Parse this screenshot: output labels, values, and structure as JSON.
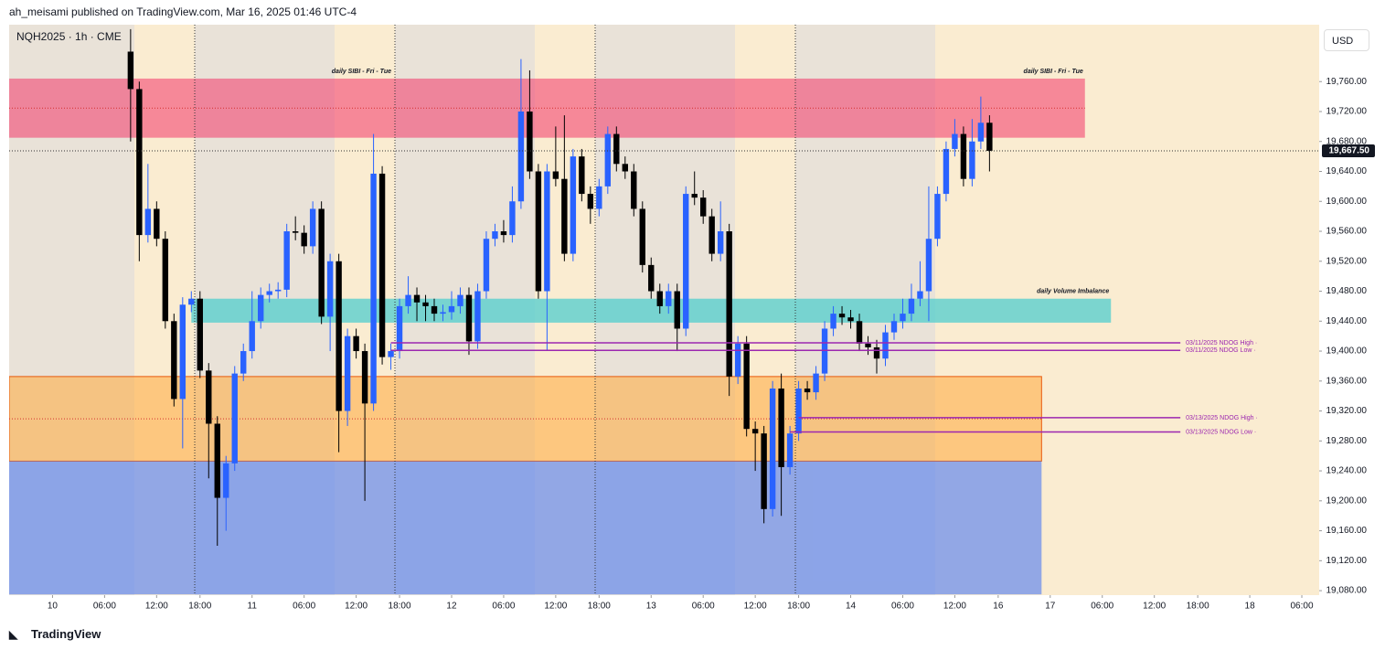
{
  "header": {
    "publisher": "ah_meisami published on TradingView.com, Mar 16, 2025 01:46 UTC-4"
  },
  "chart_data": {
    "type": "candlestick",
    "title": "NQH2025 · 1h · CME",
    "currency": "USD",
    "up_color": "#2962ff",
    "down_color": "#000000",
    "open": [
      19800,
      19750,
      19555,
      19590,
      19550,
      19440,
      19336,
      19462,
      19470,
      19374,
      19303,
      19204,
      19250,
      19370,
      19400,
      19440,
      19475,
      19480,
      19482,
      19560,
      19558,
      19540,
      19590,
      19446,
      19520,
      19320,
      19420,
      19400,
      19330,
      19637,
      19392,
      19400,
      19460,
      19475,
      19465,
      19460,
      19450,
      19452,
      19460,
      19475,
      19413,
      19480,
      19550,
      19560,
      19555,
      19600,
      19720,
      19640,
      19480,
      19640,
      19630,
      19530,
      19660,
      19610,
      19590,
      19620,
      19690,
      19650,
      19640,
      19590,
      19515,
      19480,
      19460,
      19480,
      19430,
      19610,
      19605,
      19580,
      19530,
      19560,
      19366,
      19410,
      19296,
      19290,
      19189,
      19350,
      19245,
      19290,
      19350,
      19345,
      19370,
      19430,
      19450,
      19445,
      19440,
      19410,
      19405,
      19390,
      19425,
      19440,
      19450,
      19470,
      19480,
      19550,
      19610,
      19670,
      19690,
      19630,
      19680,
      19705
    ],
    "high": [
      19830,
      19760,
      19650,
      19600,
      19560,
      19450,
      19472,
      19480,
      19480,
      19384,
      19313,
      19260,
      19380,
      19410,
      19480,
      19485,
      19490,
      19492,
      19570,
      19580,
      19568,
      19600,
      19600,
      19530,
      19530,
      19430,
      19430,
      19410,
      19690,
      19647,
      19410,
      19470,
      19500,
      19485,
      19475,
      19470,
      19462,
      19480,
      19485,
      19485,
      19490,
      19560,
      19570,
      19575,
      19620,
      19790,
      19775,
      19650,
      19650,
      19700,
      19715,
      19670,
      19670,
      19620,
      19630,
      19700,
      19700,
      19660,
      19650,
      19600,
      19525,
      19490,
      19490,
      19490,
      19620,
      19640,
      19615,
      19590,
      19600,
      19570,
      19420,
      19420,
      19306,
      19300,
      19360,
      19370,
      19300,
      19360,
      19360,
      19380,
      19440,
      19460,
      19460,
      19455,
      19450,
      19420,
      19415,
      19435,
      19450,
      19470,
      19490,
      19520,
      19620,
      19620,
      19680,
      19710,
      19700,
      19710,
      19740,
      19715
    ],
    "low": [
      19680,
      19520,
      19545,
      19540,
      19430,
      19326,
      19270,
      19452,
      19364,
      19230,
      19140,
      19160,
      19240,
      19360,
      19390,
      19430,
      19465,
      19470,
      19472,
      19548,
      19530,
      19530,
      19436,
      19400,
      19265,
      19300,
      19390,
      19200,
      19320,
      19382,
      19375,
      19390,
      19450,
      19440,
      19440,
      19440,
      19440,
      19442,
      19450,
      19395,
      19403,
      19470,
      19540,
      19545,
      19545,
      19590,
      19630,
      19470,
      19400,
      19620,
      19520,
      19520,
      19600,
      19570,
      19580,
      19610,
      19640,
      19630,
      19580,
      19505,
      19470,
      19450,
      19450,
      19400,
      19420,
      19595,
      19570,
      19520,
      19520,
      19340,
      19356,
      19286,
      19240,
      19170,
      19179,
      19180,
      19235,
      19280,
      19335,
      19335,
      19360,
      19420,
      19435,
      19430,
      19400,
      19395,
      19370,
      19380,
      19415,
      19430,
      19440,
      19460,
      19440,
      19540,
      19600,
      19660,
      19620,
      19620,
      19670,
      19640
    ],
    "close": [
      19750,
      19555,
      19590,
      19550,
      19440,
      19336,
      19462,
      19470,
      19374,
      19303,
      19204,
      19250,
      19370,
      19400,
      19440,
      19475,
      19480,
      19482,
      19560,
      19558,
      19540,
      19590,
      19446,
      19520,
      19320,
      19420,
      19400,
      19330,
      19637,
      19392,
      19400,
      19460,
      19475,
      19465,
      19460,
      19450,
      19452,
      19460,
      19475,
      19413,
      19480,
      19550,
      19560,
      19555,
      19600,
      19720,
      19640,
      19480,
      19640,
      19630,
      19530,
      19660,
      19610,
      19590,
      19620,
      19690,
      19650,
      19640,
      19590,
      19515,
      19480,
      19460,
      19480,
      19430,
      19610,
      19605,
      19580,
      19530,
      19560,
      19366,
      19410,
      19296,
      19290,
      19189,
      19350,
      19245,
      19290,
      19350,
      19345,
      19370,
      19430,
      19450,
      19445,
      19440,
      19410,
      19405,
      19390,
      19425,
      19440,
      19450,
      19470,
      19480,
      19550,
      19610,
      19670,
      19690,
      19630,
      19680,
      19705,
      19667.5
    ],
    "last_price": {
      "value": 19667.5,
      "label": "19,667.50"
    },
    "ylim": [
      19074,
      19836
    ],
    "yticks": [
      {
        "value": 19080,
        "label": "19,080.00"
      },
      {
        "value": 19120,
        "label": "19,120.00"
      },
      {
        "value": 19160,
        "label": "19,160.00"
      },
      {
        "value": 19200,
        "label": "19,200.00"
      },
      {
        "value": 19240,
        "label": "19,240.00"
      },
      {
        "value": 19280,
        "label": "19,280.00"
      },
      {
        "value": 19320,
        "label": "19,320.00"
      },
      {
        "value": 19360,
        "label": "19,360.00"
      },
      {
        "value": 19400,
        "label": "19,400.00"
      },
      {
        "value": 19440,
        "label": "19,440.00"
      },
      {
        "value": 19480,
        "label": "19,480.00"
      },
      {
        "value": 19520,
        "label": "19,520.00"
      },
      {
        "value": 19560,
        "label": "19,560.00"
      },
      {
        "value": 19600,
        "label": "19,600.00"
      },
      {
        "value": 19640,
        "label": "19,640.00"
      },
      {
        "value": 19680,
        "label": "19,680.00"
      },
      {
        "value": 19720,
        "label": "19,720.00"
      },
      {
        "value": 19760,
        "label": "19,760.00"
      }
    ],
    "xlim": [
      -14,
      137
    ],
    "xticks": [
      {
        "value": -9,
        "label": "10"
      },
      {
        "value": -3,
        "label": "06:00"
      },
      {
        "value": 3,
        "label": "12:00"
      },
      {
        "value": 8,
        "label": "18:00"
      },
      {
        "value": 14,
        "label": "11"
      },
      {
        "value": 20,
        "label": "06:00"
      },
      {
        "value": 26,
        "label": "12:00"
      },
      {
        "value": 31,
        "label": "18:00"
      },
      {
        "value": 37,
        "label": "12"
      },
      {
        "value": 43,
        "label": "06:00"
      },
      {
        "value": 49,
        "label": "12:00"
      },
      {
        "value": 54,
        "label": "18:00"
      },
      {
        "value": 60,
        "label": "13"
      },
      {
        "value": 66,
        "label": "06:00"
      },
      {
        "value": 72,
        "label": "12:00"
      },
      {
        "value": 77,
        "label": "18:00"
      },
      {
        "value": 83,
        "label": "14"
      },
      {
        "value": 89,
        "label": "06:00"
      },
      {
        "value": 95,
        "label": "12:00"
      },
      {
        "value": 100,
        "label": "16"
      },
      {
        "value": 106,
        "label": "17"
      },
      {
        "value": 112,
        "label": "06:00"
      },
      {
        "value": 118,
        "label": "12:00"
      },
      {
        "value": 123,
        "label": "18:00"
      },
      {
        "value": 129,
        "label": "18"
      },
      {
        "value": 135,
        "label": "06:00"
      }
    ],
    "zones": [
      {
        "label": "daily SIBI - Fri - Tue",
        "low": 19685,
        "high": 19764,
        "start": -14,
        "end": 110,
        "color": "rgba(242,54,105,0.55)",
        "border": "none",
        "midline": true
      },
      {
        "label": "daily Volume Imbalance",
        "low": 19438,
        "high": 19470,
        "start": 7,
        "end": 113,
        "color": "rgba(80,205,205,0.75)",
        "border": "none",
        "midline": false
      },
      {
        "low": 19253,
        "high": 19366,
        "start": -14,
        "end": 105,
        "color": "rgba(255,170,60,0.55)",
        "border": "#e8590c",
        "midline": true
      },
      {
        "low": 19075,
        "high": 19253,
        "start": -14,
        "end": 105,
        "color": "rgba(90,130,240,0.65)",
        "border": "none",
        "midline": false
      }
    ],
    "levels": [
      {
        "label": "03/11/2025 NDOG High ·",
        "value": 19411,
        "start": 30,
        "end": 121,
        "color": "#9c27b0"
      },
      {
        "label": "03/11/2025 NDOG Low ·",
        "value": 19401,
        "start": 30,
        "end": 121,
        "color": "#9c27b0"
      },
      {
        "label": "03/13/2025 NDOG High ·",
        "value": 19311,
        "start": 77,
        "end": 121,
        "color": "#9c27b0"
      },
      {
        "label": "03/13/2025 NDOG Low ·",
        "value": 19292,
        "start": 76,
        "end": 121,
        "color": "#9c27b0"
      }
    ]
  },
  "footer": {
    "brand": "TradingView"
  }
}
